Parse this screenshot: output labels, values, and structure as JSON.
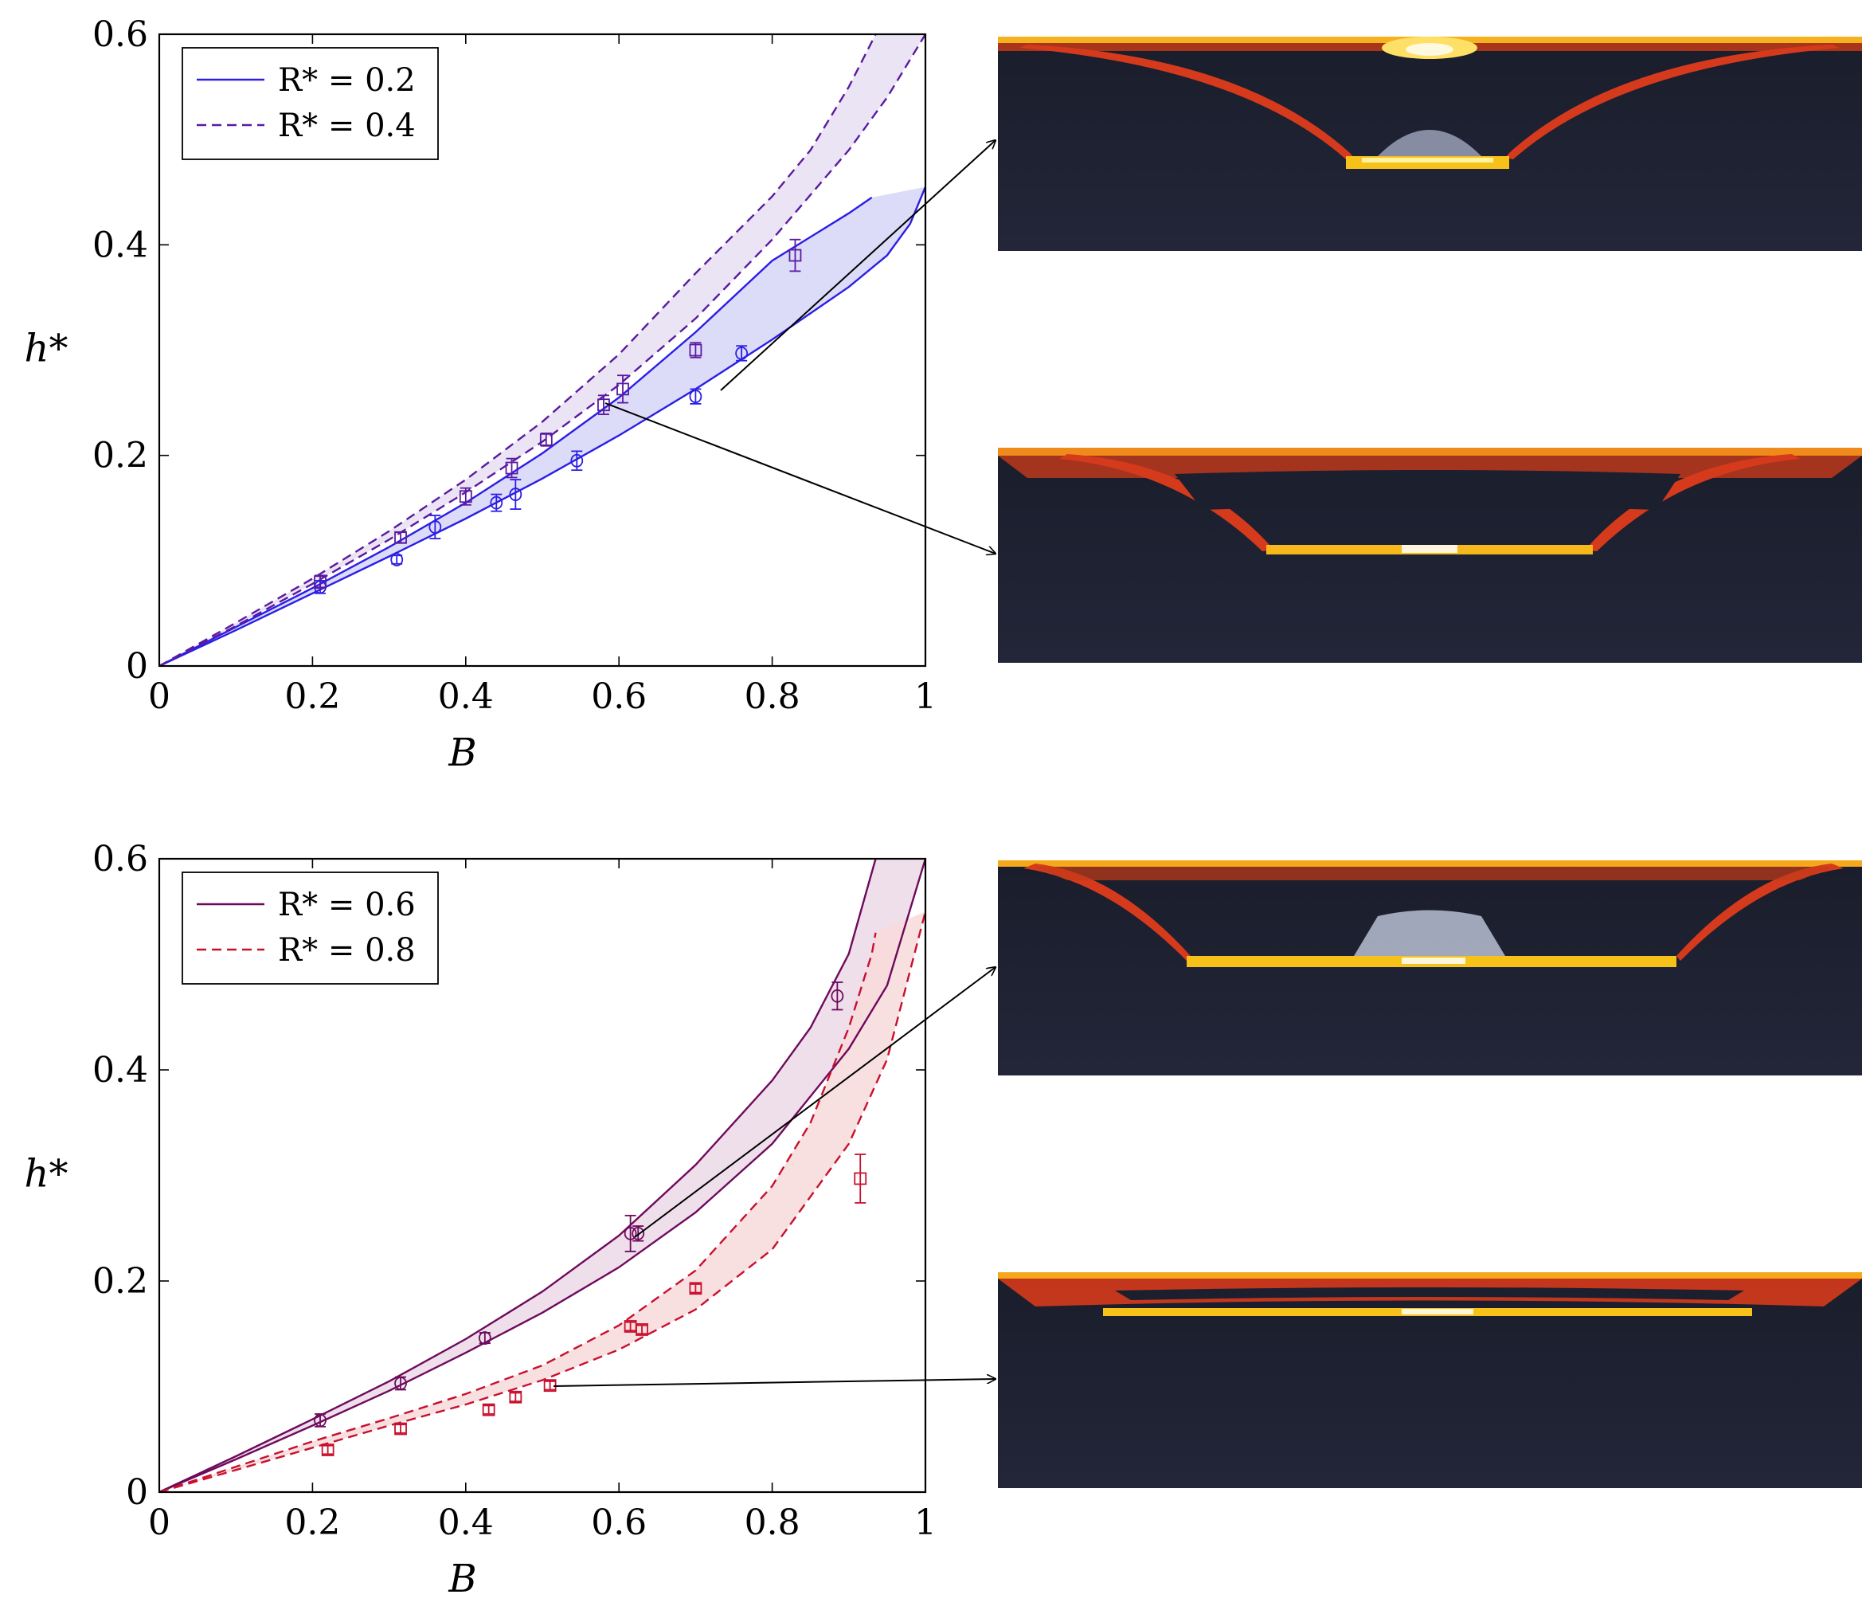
{
  "chart_data": [
    {
      "type": "line",
      "xlabel": "B",
      "ylabel": "h*",
      "xlim": [
        0,
        1
      ],
      "ylim": [
        0,
        0.6
      ],
      "xticks": [
        "0",
        "0.2",
        "0.4",
        "0.6",
        "0.8",
        "1"
      ],
      "yticks": [
        "0",
        "0.2",
        "0.4",
        "0.6"
      ],
      "legend_position": "top-left",
      "series": [
        {
          "name": "R* = 0.2",
          "style": "solid",
          "color": "#2b1ee6",
          "fill": "#d7d6f7",
          "upper": [
            [
              0,
              0
            ],
            [
              0.1,
              0.037
            ],
            [
              0.2,
              0.074
            ],
            [
              0.3,
              0.113
            ],
            [
              0.4,
              0.155
            ],
            [
              0.5,
              0.202
            ],
            [
              0.6,
              0.255
            ],
            [
              0.7,
              0.317
            ],
            [
              0.8,
              0.385
            ],
            [
              0.9,
              0.43
            ],
            [
              0.93,
              0.445
            ]
          ],
          "lower": [
            [
              0,
              0
            ],
            [
              0.1,
              0.034
            ],
            [
              0.2,
              0.069
            ],
            [
              0.3,
              0.104
            ],
            [
              0.4,
              0.14
            ],
            [
              0.5,
              0.178
            ],
            [
              0.6,
              0.219
            ],
            [
              0.7,
              0.263
            ],
            [
              0.8,
              0.31
            ],
            [
              0.9,
              0.36
            ],
            [
              0.95,
              0.39
            ],
            [
              0.98,
              0.42
            ],
            [
              1.0,
              0.455
            ]
          ],
          "points": [
            {
              "x": 0.21,
              "y": 0.075,
              "err": 0.006
            },
            {
              "x": 0.31,
              "y": 0.101,
              "err": 0.004
            },
            {
              "x": 0.36,
              "y": 0.132,
              "err": 0.011
            },
            {
              "x": 0.44,
              "y": 0.155,
              "err": 0.008
            },
            {
              "x": 0.465,
              "y": 0.163,
              "err": 0.014
            },
            {
              "x": 0.545,
              "y": 0.195,
              "err": 0.009
            },
            {
              "x": 0.7,
              "y": 0.256,
              "err": 0.007
            },
            {
              "x": 0.76,
              "y": 0.297,
              "err": 0.007
            }
          ]
        },
        {
          "name": "R* = 0.4",
          "style": "dashed",
          "color": "#5a1aa0",
          "fill": "#e7dff3",
          "upper": [
            [
              0,
              0
            ],
            [
              0.1,
              0.041
            ],
            [
              0.2,
              0.083
            ],
            [
              0.3,
              0.128
            ],
            [
              0.4,
              0.177
            ],
            [
              0.5,
              0.232
            ],
            [
              0.6,
              0.296
            ],
            [
              0.7,
              0.373
            ],
            [
              0.8,
              0.446
            ],
            [
              0.85,
              0.49
            ],
            [
              0.9,
              0.55
            ],
            [
              0.935,
              0.6
            ]
          ],
          "lower": [
            [
              0,
              0
            ],
            [
              0.1,
              0.038
            ],
            [
              0.2,
              0.078
            ],
            [
              0.3,
              0.12
            ],
            [
              0.4,
              0.165
            ],
            [
              0.5,
              0.213
            ],
            [
              0.6,
              0.267
            ],
            [
              0.7,
              0.33
            ],
            [
              0.8,
              0.405
            ],
            [
              0.9,
              0.49
            ],
            [
              0.95,
              0.54
            ],
            [
              1.0,
              0.6
            ]
          ],
          "points": [
            {
              "x": 0.21,
              "y": 0.08,
              "err": 0.006
            },
            {
              "x": 0.315,
              "y": 0.122,
              "err": 0.005
            },
            {
              "x": 0.4,
              "y": 0.161,
              "err": 0.008
            },
            {
              "x": 0.46,
              "y": 0.188,
              "err": 0.009
            },
            {
              "x": 0.505,
              "y": 0.215,
              "err": 0.006
            },
            {
              "x": 0.58,
              "y": 0.248,
              "err": 0.009
            },
            {
              "x": 0.605,
              "y": 0.263,
              "err": 0.013
            },
            {
              "x": 0.7,
              "y": 0.3,
              "err": 0.007
            },
            {
              "x": 0.83,
              "y": 0.39,
              "err": 0.015
            }
          ]
        }
      ]
    },
    {
      "type": "line",
      "xlabel": "B",
      "ylabel": "h*",
      "xlim": [
        0,
        1
      ],
      "ylim": [
        0,
        0.6
      ],
      "xticks": [
        "0",
        "0.2",
        "0.4",
        "0.6",
        "0.8",
        "1"
      ],
      "yticks": [
        "0",
        "0.2",
        "0.4",
        "0.6"
      ],
      "legend_position": "top-left",
      "series": [
        {
          "name": "R* = 0.6",
          "style": "solid",
          "color": "#6e0a5c",
          "fill": "#ecd9e8",
          "upper": [
            [
              0,
              0
            ],
            [
              0.1,
              0.034
            ],
            [
              0.2,
              0.069
            ],
            [
              0.3,
              0.105
            ],
            [
              0.4,
              0.145
            ],
            [
              0.5,
              0.19
            ],
            [
              0.6,
              0.243
            ],
            [
              0.7,
              0.31
            ],
            [
              0.8,
              0.39
            ],
            [
              0.85,
              0.44
            ],
            [
              0.9,
              0.51
            ],
            [
              0.935,
              0.6
            ]
          ],
          "lower": [
            [
              0,
              0
            ],
            [
              0.1,
              0.031
            ],
            [
              0.2,
              0.063
            ],
            [
              0.3,
              0.096
            ],
            [
              0.4,
              0.132
            ],
            [
              0.5,
              0.17
            ],
            [
              0.6,
              0.213
            ],
            [
              0.7,
              0.265
            ],
            [
              0.8,
              0.33
            ],
            [
              0.9,
              0.42
            ],
            [
              0.95,
              0.48
            ],
            [
              1.0,
              0.6
            ]
          ],
          "points": [
            {
              "x": 0.21,
              "y": 0.068,
              "err": 0.006
            },
            {
              "x": 0.315,
              "y": 0.103,
              "err": 0.006
            },
            {
              "x": 0.425,
              "y": 0.146,
              "err": 0.005
            },
            {
              "x": 0.615,
              "y": 0.245,
              "err": 0.017
            },
            {
              "x": 0.625,
              "y": 0.245,
              "err": 0.007
            },
            {
              "x": 0.885,
              "y": 0.47,
              "err": 0.013
            }
          ]
        },
        {
          "name": "R* = 0.8",
          "style": "dashed",
          "color": "#c8102e",
          "fill": "#f8dadb",
          "upper": [
            [
              0,
              0
            ],
            [
              0.1,
              0.024
            ],
            [
              0.2,
              0.048
            ],
            [
              0.3,
              0.07
            ],
            [
              0.4,
              0.093
            ],
            [
              0.5,
              0.12
            ],
            [
              0.6,
              0.158
            ],
            [
              0.7,
              0.21
            ],
            [
              0.8,
              0.29
            ],
            [
              0.85,
              0.35
            ],
            [
              0.9,
              0.44
            ],
            [
              0.93,
              0.51
            ],
            [
              0.935,
              0.53
            ]
          ],
          "lower": [
            [
              0,
              0
            ],
            [
              0.1,
              0.021
            ],
            [
              0.2,
              0.042
            ],
            [
              0.3,
              0.063
            ],
            [
              0.4,
              0.083
            ],
            [
              0.5,
              0.106
            ],
            [
              0.6,
              0.135
            ],
            [
              0.7,
              0.173
            ],
            [
              0.8,
              0.23
            ],
            [
              0.9,
              0.33
            ],
            [
              0.95,
              0.41
            ],
            [
              1.0,
              0.55
            ]
          ],
          "points": [
            {
              "x": 0.22,
              "y": 0.04,
              "err": 0.004
            },
            {
              "x": 0.315,
              "y": 0.06,
              "err": 0.004
            },
            {
              "x": 0.43,
              "y": 0.078,
              "err": 0.004
            },
            {
              "x": 0.465,
              "y": 0.09,
              "err": 0.004
            },
            {
              "x": 0.51,
              "y": 0.101,
              "err": 0.004
            },
            {
              "x": 0.615,
              "y": 0.157,
              "err": 0.004
            },
            {
              "x": 0.63,
              "y": 0.154,
              "err": 0.004
            },
            {
              "x": 0.7,
              "y": 0.193,
              "err": 0.004
            },
            {
              "x": 0.915,
              "y": 0.297,
              "err": 0.023
            }
          ]
        }
      ]
    }
  ]
}
